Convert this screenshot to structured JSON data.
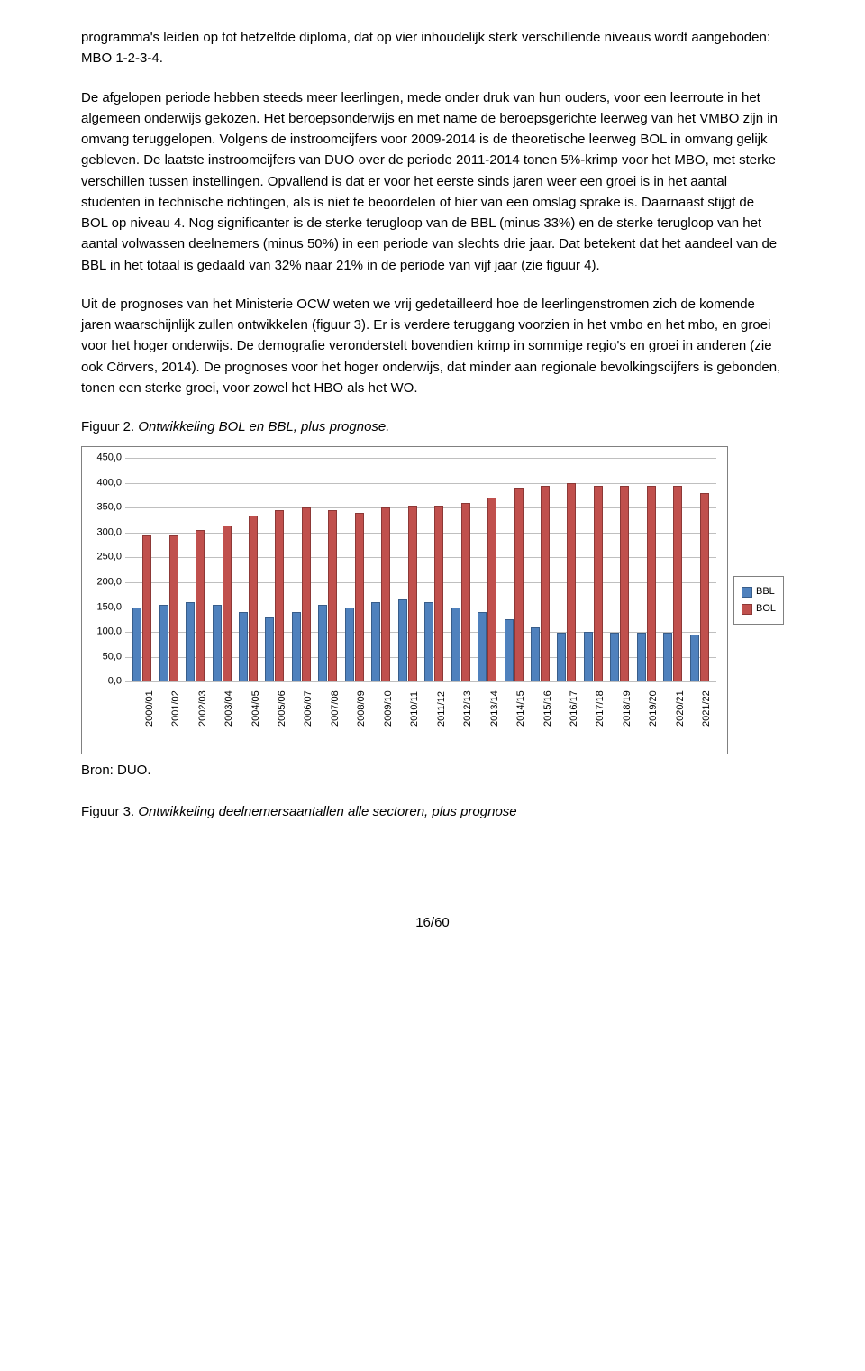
{
  "para1": "programma's leiden op tot hetzelfde diploma, dat op vier inhoudelijk sterk verschillende niveaus wordt aangeboden: MBO 1-2-3-4.",
  "para2": "De afgelopen periode hebben steeds meer leerlingen, mede onder druk van hun ouders, voor een leerroute in het algemeen onderwijs gekozen. Het beroepsonderwijs en met name de beroepsgerichte leerweg van het VMBO zijn in omvang teruggelopen. Volgens de instroomcijfers voor 2009-2014 is de theoretische leerweg BOL in omvang gelijk gebleven. De laatste instroomcijfers van DUO over de periode 2011-2014 tonen 5%-krimp voor het MBO, met sterke verschillen tussen instellingen. Opvallend is dat er voor het eerste sinds jaren weer een groei is in het aantal studenten in technische richtingen, als is niet te beoordelen of hier van een omslag sprake is. Daarnaast stijgt de BOL op niveau 4. Nog significanter is de sterke terugloop van de BBL (minus 33%) en de sterke terugloop van het aantal volwassen deelnemers (minus 50%) in een periode van slechts drie jaar. Dat betekent dat het aandeel van de BBL in het totaal is gedaald van 32% naar 21% in de periode van vijf jaar (zie figuur 4).",
  "para3": "Uit de prognoses van het Ministerie OCW weten we vrij gedetailleerd hoe de leerlingenstromen zich de komende jaren waarschijnlijk zullen ontwikkelen (figuur 3). Er is verdere teruggang voorzien in het vmbo en het mbo, en groei voor het hoger onderwijs. De demografie veronderstelt bovendien krimp in sommige regio's en groei in anderen (zie ook Cörvers, 2014). De prognoses voor het hoger onderwijs, dat minder aan regionale bevolkingscijfers is gebonden, tonen een sterke groei, voor zowel het HBO als het WO.",
  "fig2_label": "Figuur 2. ",
  "fig2_title": "Ontwikkeling BOL en BBL, plus prognose.",
  "fig3_label": "Figuur 3. ",
  "fig3_title": "Ontwikkeling deelnemersaantallen alle sectoren, plus prognose",
  "source": "Bron: DUO.",
  "page_number": "16/60",
  "chart": {
    "type": "bar",
    "ylim": [
      0,
      450
    ],
    "ytick_step": 50,
    "yticks": [
      "0,0",
      "50,0",
      "100,0",
      "150,0",
      "200,0",
      "250,0",
      "300,0",
      "350,0",
      "400,0",
      "450,0"
    ],
    "grid_color": "#bfbfbf",
    "background_color": "#ffffff",
    "categories": [
      "2000/01",
      "2001/02",
      "2002/03",
      "2003/04",
      "2004/05",
      "2005/06",
      "2006/07",
      "2007/08",
      "2008/09",
      "2009/10",
      "2010/11",
      "2011/12",
      "2012/13",
      "2013/14",
      "2014/15",
      "2015/16",
      "2016/17",
      "2017/18",
      "2018/19",
      "2019/20",
      "2020/21",
      "2021/22"
    ],
    "series": [
      {
        "name": "BBL",
        "color": "#4f81bd",
        "border": "#385d8a",
        "values": [
          150,
          155,
          160,
          155,
          140,
          130,
          140,
          155,
          150,
          160,
          165,
          160,
          150,
          140,
          125,
          110,
          98,
          100,
          98,
          98,
          98,
          95
        ]
      },
      {
        "name": "BOL",
        "color": "#c0504d",
        "border": "#8c3836",
        "values": [
          295,
          295,
          305,
          315,
          335,
          345,
          350,
          345,
          340,
          350,
          355,
          355,
          360,
          370,
          390,
          395,
          400,
          395,
          395,
          395,
          395,
          380
        ]
      }
    ]
  }
}
